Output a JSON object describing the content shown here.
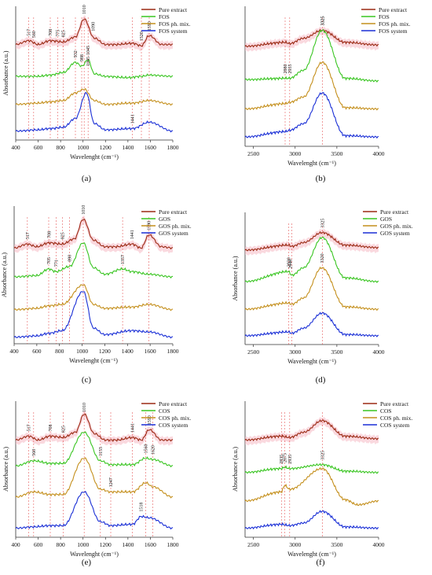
{
  "panels": [
    {
      "caption": "(a)",
      "xlabel": "Wavelenght (cm⁻¹)",
      "ylabel": "Absorbance (a.u.)",
      "xlim": [
        400,
        1800
      ],
      "xticks": [
        400,
        600,
        800,
        1000,
        1200,
        1400,
        1600,
        1800
      ],
      "legend": [
        "Pure extract",
        "FOS",
        "FOS ph. mix.",
        "FOS system"
      ],
      "peak_labels": [
        "517",
        "560",
        "708",
        "775",
        "825",
        "932",
        "988",
        "1010",
        "1045",
        "1090",
        "1045",
        "1520",
        "1590",
        "1441"
      ]
    },
    {
      "caption": "(b)",
      "xlabel": "Wavelenght (cm⁻¹)",
      "ylabel": "",
      "xlim": [
        2400,
        4000
      ],
      "xticks": [
        2500,
        3000,
        3500,
        4000
      ],
      "legend": [
        "Pure extract",
        "FOS",
        "FOS ph. mix.",
        "FOS system"
      ],
      "peak_labels": [
        "3325",
        "3325",
        "2880",
        "2935"
      ]
    },
    {
      "caption": "(c)",
      "xlabel": "Wavelenght (cm⁻¹)",
      "ylabel": "Absorbance (a.u.)",
      "xlim": [
        400,
        1800
      ],
      "xticks": [
        400,
        600,
        800,
        1000,
        1200,
        1400,
        1600,
        1800
      ],
      "legend": [
        "Pure extract",
        "GOS",
        "GOS ph. mix.",
        "GOS system"
      ],
      "peak_labels": [
        "517",
        "705",
        "708",
        "771",
        "825",
        "890",
        "1010",
        "1357",
        "1441",
        "1590"
      ]
    },
    {
      "caption": "(d)",
      "xlabel": "Wavelenght (cm⁻¹)",
      "ylabel": "Absorbance (a.u.)",
      "xlim": [
        2400,
        4000
      ],
      "xticks": [
        2500,
        3000,
        3500,
        4000
      ],
      "legend": [
        "Pure extract",
        "GOS",
        "GOS ph. mix.",
        "GOS system"
      ],
      "peak_labels": [
        "3325",
        "2920",
        "2940",
        "3320"
      ]
    },
    {
      "caption": "(e)",
      "xlabel": "Wavelenght (cm⁻¹)",
      "ylabel": "Absorbance (a.u.)",
      "xlim": [
        400,
        1800
      ],
      "xticks": [
        400,
        600,
        800,
        1000,
        1200,
        1400,
        1600,
        1800
      ],
      "legend": [
        "Pure extract",
        "COS",
        "COS ph. mix.",
        "COS system"
      ],
      "peak_labels": [
        "1010",
        "517",
        "560",
        "708",
        "825",
        "1155",
        "1247",
        "1441",
        "1560",
        "1620",
        "1518",
        "1590"
      ]
    },
    {
      "caption": "(f)",
      "xlabel": "Wavelenght (cm⁻¹)",
      "ylabel": "Absorbance (a.u.)",
      "xlim": [
        2400,
        4000
      ],
      "xticks": [
        2500,
        3000,
        3500,
        4000
      ],
      "legend": [
        "Pure extract",
        "COS",
        "COS ph. mix.",
        "COS system"
      ],
      "peak_labels": [
        "2835",
        "2875",
        "2935",
        "3325"
      ]
    }
  ],
  "colors": {
    "pure_extract": "#9b2a14",
    "oligo": "#39c521",
    "ph_mix": "#c48f1c",
    "system": "#1a2fd6",
    "highlight": "#f6b9c4",
    "guide": "#e23b3b"
  },
  "chart_data": [
    {
      "type": "line",
      "title": "",
      "xlabel": "Wavelenght (cm⁻¹)",
      "ylabel": "Absorbance (a.u.)",
      "xlim": [
        400,
        1800
      ],
      "legend_position": "top-right",
      "series": [
        {
          "name": "Pure extract",
          "x": [
            400,
            517,
            600,
            708,
            825,
            932,
            1010,
            1100,
            1200,
            1300,
            1441,
            1520,
            1590,
            1700,
            1800
          ],
          "y": [
            0.8,
            0.83,
            0.8,
            0.83,
            0.82,
            0.86,
            1.0,
            0.85,
            0.8,
            0.8,
            0.81,
            0.79,
            0.87,
            0.8,
            0.8
          ]
        },
        {
          "name": "FOS",
          "x": [
            400,
            600,
            708,
            825,
            932,
            988,
            1045,
            1100,
            1200,
            1400,
            1520,
            1590,
            1800
          ],
          "y": [
            0.55,
            0.55,
            0.56,
            0.58,
            0.66,
            0.63,
            0.68,
            0.57,
            0.55,
            0.54,
            0.55,
            0.56,
            0.55
          ]
        },
        {
          "name": "FOS ph. mix.",
          "x": [
            400,
            600,
            708,
            825,
            932,
            1010,
            1100,
            1200,
            1441,
            1590,
            1800
          ],
          "y": [
            0.33,
            0.34,
            0.35,
            0.36,
            0.42,
            0.45,
            0.36,
            0.33,
            0.34,
            0.36,
            0.33
          ]
        },
        {
          "name": "FOS system",
          "x": [
            400,
            600,
            708,
            825,
            932,
            1030,
            1100,
            1200,
            1441,
            1590,
            1800
          ],
          "y": [
            0.12,
            0.13,
            0.14,
            0.15,
            0.22,
            0.42,
            0.18,
            0.13,
            0.14,
            0.19,
            0.12
          ]
        }
      ]
    },
    {
      "type": "line",
      "title": "",
      "xlabel": "Wavelenght (cm⁻¹)",
      "ylabel": "",
      "xlim": [
        2400,
        4000
      ],
      "legend_position": "top-right",
      "series": [
        {
          "name": "Pure extract",
          "x": [
            2400,
            2880,
            2935,
            3100,
            3325,
            3600,
            4000
          ],
          "y": [
            0.8,
            0.83,
            0.82,
            0.86,
            0.92,
            0.83,
            0.81
          ]
        },
        {
          "name": "FOS",
          "x": [
            2400,
            2880,
            2935,
            3100,
            3325,
            3600,
            4000
          ],
          "y": [
            0.55,
            0.56,
            0.56,
            0.62,
            0.92,
            0.56,
            0.54
          ]
        },
        {
          "name": "FOS ph. mix.",
          "x": [
            2400,
            2880,
            2935,
            3100,
            3325,
            3600,
            4000
          ],
          "y": [
            0.33,
            0.37,
            0.38,
            0.42,
            0.68,
            0.34,
            0.33
          ]
        },
        {
          "name": "FOS system",
          "x": [
            2400,
            2880,
            2935,
            3100,
            3325,
            3600,
            4000
          ],
          "y": [
            0.12,
            0.16,
            0.17,
            0.22,
            0.45,
            0.13,
            0.12
          ]
        }
      ]
    },
    {
      "type": "line",
      "title": "",
      "xlabel": "Wavelenght (cm⁻¹)",
      "ylabel": "Absorbance (a.u.)",
      "xlim": [
        400,
        1800
      ],
      "legend_position": "top-right",
      "series": [
        {
          "name": "Pure extract",
          "x": [
            400,
            517,
            600,
            708,
            825,
            932,
            1010,
            1100,
            1200,
            1300,
            1441,
            1520,
            1590,
            1700,
            1800
          ],
          "y": [
            0.78,
            0.81,
            0.79,
            0.82,
            0.81,
            0.85,
            1.0,
            0.84,
            0.79,
            0.79,
            0.81,
            0.78,
            0.88,
            0.79,
            0.78
          ]
        },
        {
          "name": "GOS",
          "x": [
            400,
            600,
            705,
            771,
            890,
            1010,
            1100,
            1200,
            1357,
            1441,
            1590,
            1800
          ],
          "y": [
            0.56,
            0.57,
            0.62,
            0.6,
            0.64,
            0.82,
            0.63,
            0.58,
            0.62,
            0.6,
            0.58,
            0.56
          ]
        },
        {
          "name": "GOS ph. mix.",
          "x": [
            400,
            600,
            708,
            825,
            1010,
            1100,
            1200,
            1441,
            1590,
            1800
          ],
          "y": [
            0.31,
            0.32,
            0.34,
            0.35,
            0.5,
            0.35,
            0.32,
            0.33,
            0.35,
            0.31
          ]
        },
        {
          "name": "GOS system",
          "x": [
            400,
            600,
            708,
            825,
            1010,
            1100,
            1200,
            1441,
            1590,
            1800
          ],
          "y": [
            0.1,
            0.11,
            0.13,
            0.15,
            0.45,
            0.17,
            0.12,
            0.15,
            0.14,
            0.1
          ]
        }
      ]
    },
    {
      "type": "line",
      "title": "",
      "xlabel": "Wavelenght (cm⁻¹)",
      "ylabel": "Absorbance (a.u.)",
      "xlim": [
        2400,
        4000
      ],
      "legend_position": "top-right",
      "series": [
        {
          "name": "Pure extract",
          "x": [
            2400,
            2920,
            2960,
            3100,
            3325,
            3600,
            4000
          ],
          "y": [
            0.8,
            0.84,
            0.83,
            0.86,
            0.94,
            0.84,
            0.82
          ]
        },
        {
          "name": "GOS",
          "x": [
            2400,
            2920,
            2960,
            3100,
            3325,
            3600,
            4000
          ],
          "y": [
            0.55,
            0.63,
            0.6,
            0.66,
            0.9,
            0.58,
            0.55
          ]
        },
        {
          "name": "GOS ph. mix.",
          "x": [
            2400,
            2920,
            2960,
            3100,
            3320,
            3600,
            4000
          ],
          "y": [
            0.33,
            0.38,
            0.37,
            0.42,
            0.66,
            0.35,
            0.33
          ]
        },
        {
          "name": "GOS system",
          "x": [
            2400,
            2920,
            2960,
            3100,
            3325,
            3600,
            4000
          ],
          "y": [
            0.12,
            0.15,
            0.14,
            0.18,
            0.3,
            0.13,
            0.12
          ]
        }
      ]
    },
    {
      "type": "line",
      "title": "",
      "xlabel": "Wavelenght (cm⁻¹)",
      "ylabel": "Absorbance (a.u.)",
      "xlim": [
        400,
        1800
      ],
      "legend_position": "top-right",
      "series": [
        {
          "name": "Pure extract",
          "x": [
            400,
            517,
            600,
            708,
            825,
            932,
            1010,
            1100,
            1200,
            1300,
            1441,
            1520,
            1590,
            1700,
            1800
          ],
          "y": [
            0.8,
            0.83,
            0.8,
            0.83,
            0.82,
            0.86,
            1.0,
            0.85,
            0.8,
            0.8,
            0.82,
            0.8,
            0.88,
            0.8,
            0.8
          ]
        },
        {
          "name": "COS",
          "x": [
            400,
            560,
            708,
            825,
            1010,
            1155,
            1247,
            1441,
            1560,
            1620,
            1800
          ],
          "y": [
            0.6,
            0.64,
            0.62,
            0.62,
            0.86,
            0.64,
            0.61,
            0.61,
            0.66,
            0.65,
            0.6
          ]
        },
        {
          "name": "COS ph. mix.",
          "x": [
            400,
            560,
            708,
            825,
            1010,
            1155,
            1247,
            1441,
            1560,
            1620,
            1800
          ],
          "y": [
            0.36,
            0.4,
            0.38,
            0.38,
            0.66,
            0.42,
            0.4,
            0.4,
            0.47,
            0.44,
            0.36
          ]
        },
        {
          "name": "COS system",
          "x": [
            400,
            560,
            708,
            825,
            1010,
            1155,
            1247,
            1441,
            1518,
            1590,
            1800
          ],
          "y": [
            0.12,
            0.13,
            0.14,
            0.14,
            0.4,
            0.17,
            0.14,
            0.15,
            0.21,
            0.2,
            0.12
          ]
        }
      ]
    },
    {
      "type": "line",
      "title": "",
      "xlabel": "Wavelenght (cm⁻¹)",
      "ylabel": "Absorbance (a.u.)",
      "xlim": [
        2400,
        4000
      ],
      "legend_position": "top-right",
      "series": [
        {
          "name": "Pure extract",
          "x": [
            2400,
            2835,
            2935,
            3100,
            3325,
            3600,
            4000
          ],
          "y": [
            0.8,
            0.83,
            0.82,
            0.86,
            0.95,
            0.83,
            0.81
          ]
        },
        {
          "name": "COS",
          "x": [
            2400,
            2835,
            2875,
            2935,
            3325,
            3600,
            4000
          ],
          "y": [
            0.55,
            0.58,
            0.59,
            0.58,
            0.61,
            0.56,
            0.55
          ]
        },
        {
          "name": "COS ph. mix.",
          "x": [
            2400,
            2835,
            2875,
            2935,
            3325,
            3600,
            3750,
            4000
          ],
          "y": [
            0.33,
            0.4,
            0.45,
            0.42,
            0.58,
            0.34,
            0.3,
            0.33
          ]
        },
        {
          "name": "COS system",
          "x": [
            2400,
            2835,
            2935,
            3100,
            3325,
            3600,
            4000
          ],
          "y": [
            0.12,
            0.15,
            0.14,
            0.16,
            0.25,
            0.13,
            0.12
          ]
        }
      ]
    }
  ]
}
